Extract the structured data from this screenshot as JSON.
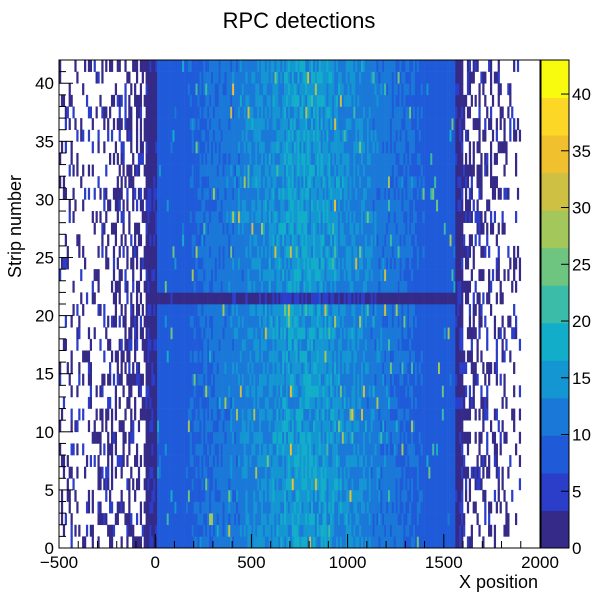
{
  "chart_data": {
    "type": "heatmap",
    "title": "RPC detections",
    "xlabel": "X position",
    "ylabel": "Strip number",
    "xlim": [
      -500,
      2000
    ],
    "ylim": [
      0,
      42
    ],
    "zlim": [
      0,
      43
    ],
    "x_ticks": [
      "−500",
      "0",
      "500",
      "1000",
      "1500",
      "2000"
    ],
    "x_tick_values": [
      -500,
      0,
      500,
      1000,
      1500,
      2000
    ],
    "y_ticks": [
      "0",
      "5",
      "10",
      "15",
      "20",
      "25",
      "30",
      "35",
      "40"
    ],
    "y_tick_values": [
      0,
      5,
      10,
      15,
      20,
      25,
      30,
      35,
      40
    ],
    "z_ticks": [
      "0",
      "5",
      "10",
      "15",
      "20",
      "25",
      "30",
      "35",
      "40"
    ],
    "z_tick_values": [
      0,
      5,
      10,
      15,
      20,
      25,
      30,
      35,
      40
    ],
    "palette": [
      "#352a87",
      "#2a3ec9",
      "#1f5bd9",
      "#1a78d8",
      "#1496d3",
      "#12aec9",
      "#3bbca8",
      "#6dc57f",
      "#a3c75b",
      "#cdc043",
      "#f1c02e",
      "#fdd725",
      "#f9fb0e"
    ],
    "x_bin_width": 10,
    "strips": 42,
    "profile": {
      "edge_tail_x": [
        -500,
        -50
      ],
      "core_x": [
        -50,
        1600
      ],
      "right_tail_x": [
        1600,
        1900
      ],
      "core_mean": 9,
      "core_peak": 20,
      "tail_occupancy": 0.5,
      "low_band_strip": 21
    }
  }
}
